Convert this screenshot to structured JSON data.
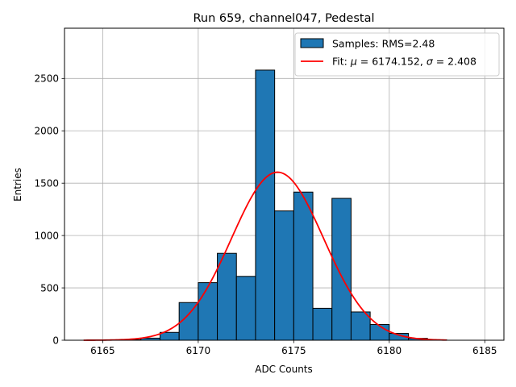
{
  "chart_data": {
    "type": "bar",
    "title": "Run 659, channel047, Pedestal",
    "xlabel": "ADC Counts",
    "ylabel": "Entries",
    "xlim": [
      6163.0,
      6186.0
    ],
    "ylim": [
      0,
      2980
    ],
    "grid": true,
    "legend_position": "top-right",
    "x_ticks": [
      6165,
      6170,
      6175,
      6180,
      6185
    ],
    "x_tick_labels": [
      "6165",
      "6170",
      "6175",
      "6180",
      "6185"
    ],
    "y_ticks": [
      0,
      500,
      1000,
      1500,
      2000,
      2500
    ],
    "y_tick_labels": [
      "0",
      "500",
      "1000",
      "1500",
      "2000",
      "2500"
    ],
    "histogram": {
      "name": "Samples: RMS=2.48",
      "color": "#1f77b4",
      "edge_color": "#000000",
      "bins": [
        {
          "left": 6164.0,
          "right": 6165.0,
          "value": 0
        },
        {
          "left": 6165.0,
          "right": 6166.0,
          "value": 0
        },
        {
          "left": 6166.0,
          "right": 6167.0,
          "value": 5
        },
        {
          "left": 6167.0,
          "right": 6168.0,
          "value": 20
        },
        {
          "left": 6168.0,
          "right": 6169.0,
          "value": 75
        },
        {
          "left": 6169.0,
          "right": 6170.0,
          "value": 360
        },
        {
          "left": 6170.0,
          "right": 6171.0,
          "value": 550
        },
        {
          "left": 6171.0,
          "right": 6172.0,
          "value": 830
        },
        {
          "left": 6172.0,
          "right": 6173.0,
          "value": 610
        },
        {
          "left": 6173.0,
          "right": 6174.0,
          "value": 2580
        },
        {
          "left": 6174.0,
          "right": 6175.0,
          "value": 1235
        },
        {
          "left": 6175.0,
          "right": 6176.0,
          "value": 1415
        },
        {
          "left": 6176.0,
          "right": 6177.0,
          "value": 305
        },
        {
          "left": 6177.0,
          "right": 6178.0,
          "value": 1355
        },
        {
          "left": 6178.0,
          "right": 6179.0,
          "value": 270
        },
        {
          "left": 6179.0,
          "right": 6180.0,
          "value": 150
        },
        {
          "left": 6180.0,
          "right": 6181.0,
          "value": 65
        },
        {
          "left": 6181.0,
          "right": 6182.0,
          "value": 18
        },
        {
          "left": 6182.0,
          "right": 6183.0,
          "value": 4
        }
      ]
    },
    "fit": {
      "name_prefix": "Fit: ",
      "mu_symbol": "μ",
      "mu_text": " = 6174.152, ",
      "sigma_symbol": "σ",
      "sigma_text": " = 2.408",
      "color": "#ff0000",
      "mu": 6174.152,
      "sigma": 2.408,
      "amplitude": 1605,
      "x_range": [
        6164.0,
        6183.0
      ]
    }
  }
}
